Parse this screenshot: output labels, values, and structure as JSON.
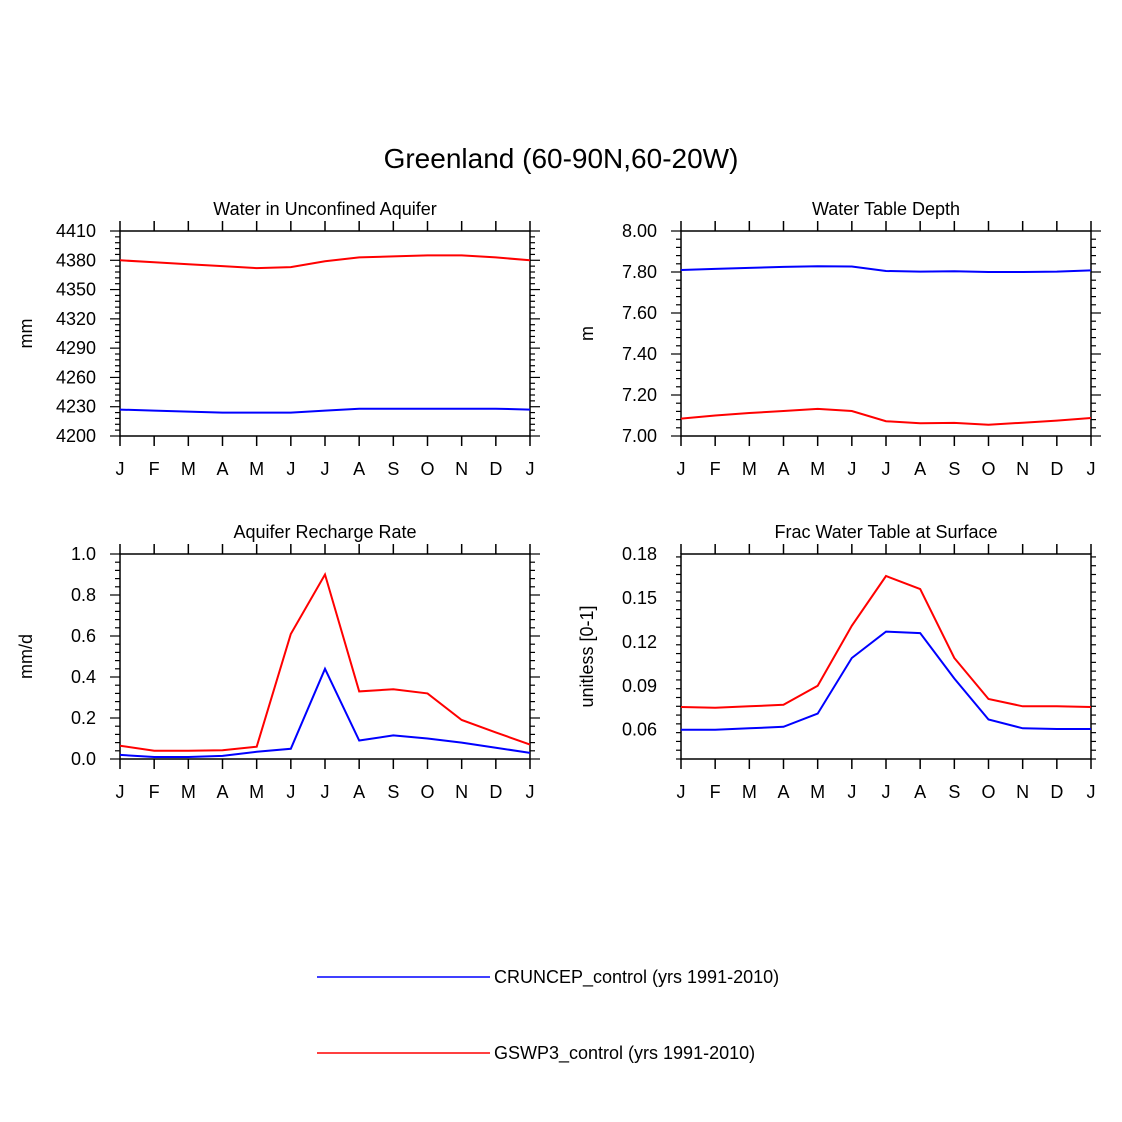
{
  "title": "Greenland (60-90N,60-20W)",
  "colors": {
    "series_1": "#0000ff",
    "series_2": "#ff0000",
    "axis": "#000000"
  },
  "legend": [
    {
      "label": "CRUNCEP_control (yrs 1991-2010)",
      "color": "#0000ff"
    },
    {
      "label": "GSWP3_control (yrs 1991-2010)",
      "color": "#ff0000"
    }
  ],
  "chart_data": [
    {
      "type": "line",
      "title": "Water in Unconfined Aquifer",
      "xlabel": "",
      "ylabel": "mm",
      "categories": [
        "J",
        "F",
        "M",
        "A",
        "M",
        "J",
        "J",
        "A",
        "S",
        "O",
        "N",
        "D",
        "J"
      ],
      "ylim": [
        4200,
        4410
      ],
      "yticks": [
        "4200",
        "4230",
        "4260",
        "4290",
        "4320",
        "4350",
        "4380",
        "4410"
      ],
      "series": [
        {
          "name": "CRUNCEP_control (yrs 1991-2010)",
          "values": [
            4227,
            4226,
            4225,
            4224,
            4224,
            4224,
            4226,
            4228,
            4228,
            4228,
            4228,
            4228,
            4227
          ]
        },
        {
          "name": "GSWP3_control (yrs 1991-2010)",
          "values": [
            4380,
            4378,
            4376,
            4374,
            4372,
            4373,
            4379,
            4383,
            4384,
            4385,
            4385,
            4383,
            4380
          ]
        }
      ]
    },
    {
      "type": "line",
      "title": "Water Table Depth",
      "xlabel": "",
      "ylabel": "m",
      "categories": [
        "J",
        "F",
        "M",
        "A",
        "M",
        "J",
        "J",
        "A",
        "S",
        "O",
        "N",
        "D",
        "J"
      ],
      "ylim": [
        7.0,
        8.0
      ],
      "yticks": [
        "7.00",
        "7.20",
        "7.40",
        "7.60",
        "7.80",
        "8.00"
      ],
      "series": [
        {
          "name": "CRUNCEP_control (yrs 1991-2010)",
          "values": [
            7.81,
            7.815,
            7.82,
            7.825,
            7.828,
            7.827,
            7.805,
            7.802,
            7.804,
            7.8,
            7.8,
            7.802,
            7.808
          ]
        },
        {
          "name": "GSWP3_control (yrs 1991-2010)",
          "values": [
            7.085,
            7.1,
            7.112,
            7.122,
            7.132,
            7.122,
            7.072,
            7.062,
            7.064,
            7.055,
            7.065,
            7.075,
            7.088
          ]
        }
      ]
    },
    {
      "type": "line",
      "title": "Aquifer Recharge Rate",
      "xlabel": "",
      "ylabel": "mm/d",
      "categories": [
        "J",
        "F",
        "M",
        "A",
        "M",
        "J",
        "J",
        "A",
        "S",
        "O",
        "N",
        "D",
        "J"
      ],
      "ylim": [
        0.0,
        1.0
      ],
      "yticks": [
        "0.0",
        "0.2",
        "0.4",
        "0.6",
        "0.8",
        "1.0"
      ],
      "series": [
        {
          "name": "CRUNCEP_control (yrs 1991-2010)",
          "values": [
            0.02,
            0.01,
            0.01,
            0.015,
            0.035,
            0.05,
            0.44,
            0.09,
            0.115,
            0.1,
            0.08,
            0.055,
            0.03
          ]
        },
        {
          "name": "GSWP3_control (yrs 1991-2010)",
          "values": [
            0.065,
            0.04,
            0.04,
            0.043,
            0.06,
            0.61,
            0.9,
            0.33,
            0.34,
            0.32,
            0.19,
            0.13,
            0.07
          ]
        }
      ]
    },
    {
      "type": "line",
      "title": "Frac Water Table at Surface",
      "xlabel": "",
      "ylabel": "unitless [0-1]",
      "categories": [
        "J",
        "F",
        "M",
        "A",
        "M",
        "J",
        "J",
        "A",
        "S",
        "O",
        "N",
        "D",
        "J"
      ],
      "ylim": [
        0.04,
        0.18
      ],
      "yticks": [
        "0.06",
        "0.09",
        "0.12",
        "0.15",
        "0.18"
      ],
      "series": [
        {
          "name": "CRUNCEP_control (yrs 1991-2010)",
          "values": [
            0.06,
            0.06,
            0.061,
            0.062,
            0.071,
            0.109,
            0.127,
            0.126,
            0.095,
            0.067,
            0.061,
            0.0605,
            0.0605
          ]
        },
        {
          "name": "GSWP3_control (yrs 1991-2010)",
          "values": [
            0.0755,
            0.075,
            0.076,
            0.077,
            0.09,
            0.131,
            0.165,
            0.156,
            0.109,
            0.081,
            0.076,
            0.076,
            0.0755
          ]
        }
      ]
    }
  ]
}
